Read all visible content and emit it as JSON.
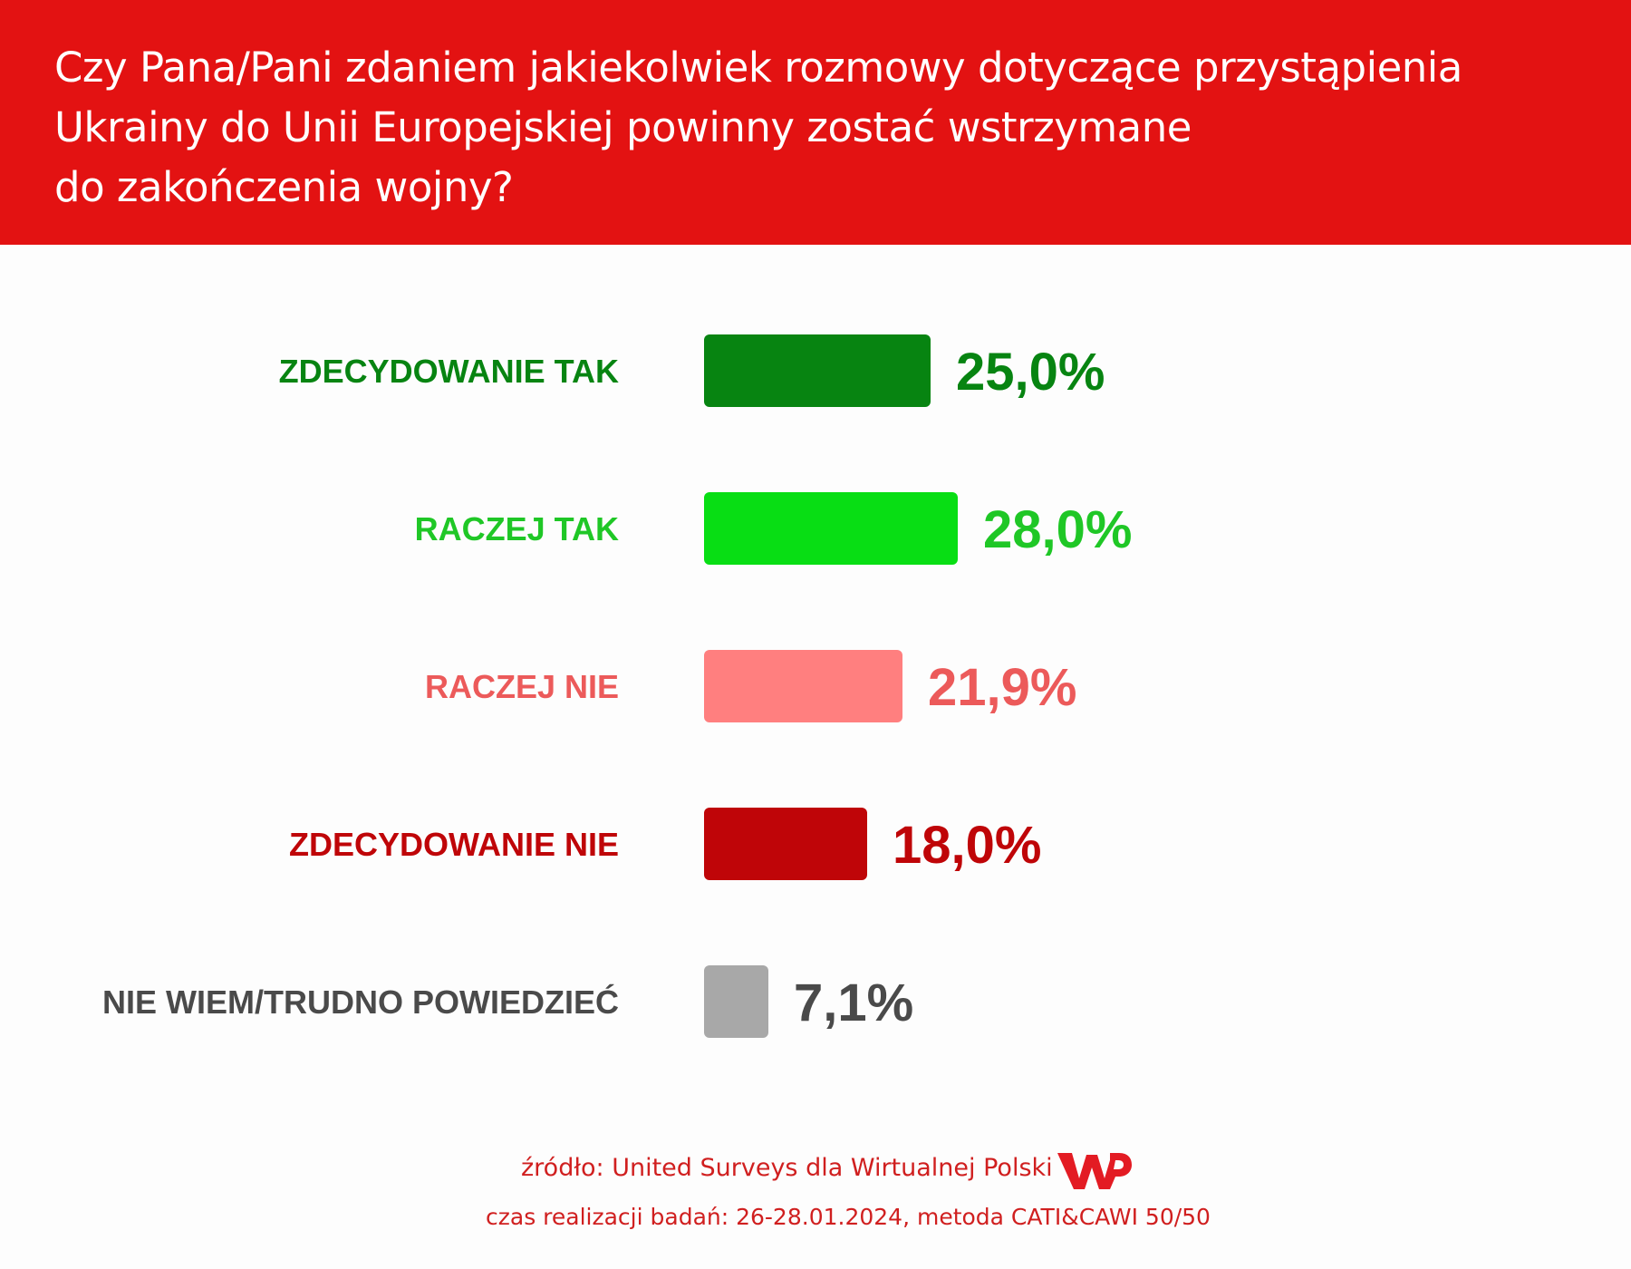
{
  "header": {
    "title": "Czy Pana/Pani zdaniem jakiekolwiek rozmowy dotyczące przystąpienia\nUkrainy do Unii Europejskiej powinny zostać wstrzymane\ndo zakończenia wojny?",
    "background_color": "#e31212"
  },
  "chart_data": {
    "type": "bar",
    "orientation": "horizontal",
    "categories": [
      "ZDECYDOWANIE TAK",
      "RACZEJ TAK",
      "RACZEJ NIE",
      "ZDECYDOWANIE NIE",
      "NIE WIEM/TRUDNO POWIEDZIEĆ"
    ],
    "values": [
      25.0,
      28.0,
      21.9,
      18.0,
      7.1
    ],
    "value_labels": [
      "25,0%",
      "28,0%",
      "21,9%",
      "18,0%",
      "7,1%"
    ],
    "bar_colors": [
      "#078411",
      "#08de14",
      "#ff7f7f",
      "#bf0508",
      "#a8a8a8"
    ],
    "label_colors": [
      "#078411",
      "#1fc726",
      "#ec5a5a",
      "#bf0508",
      "#4a4a4a"
    ],
    "grid": false,
    "legend": "none"
  },
  "footer": {
    "source": "źródło: United Surveys dla Wirtualnej Polski",
    "time": "czas realizacji badań: 26-28.01.2024, metoda CATI&CAWI 50/50",
    "logo_text": "WP",
    "accent_color": "#d01f1f"
  }
}
